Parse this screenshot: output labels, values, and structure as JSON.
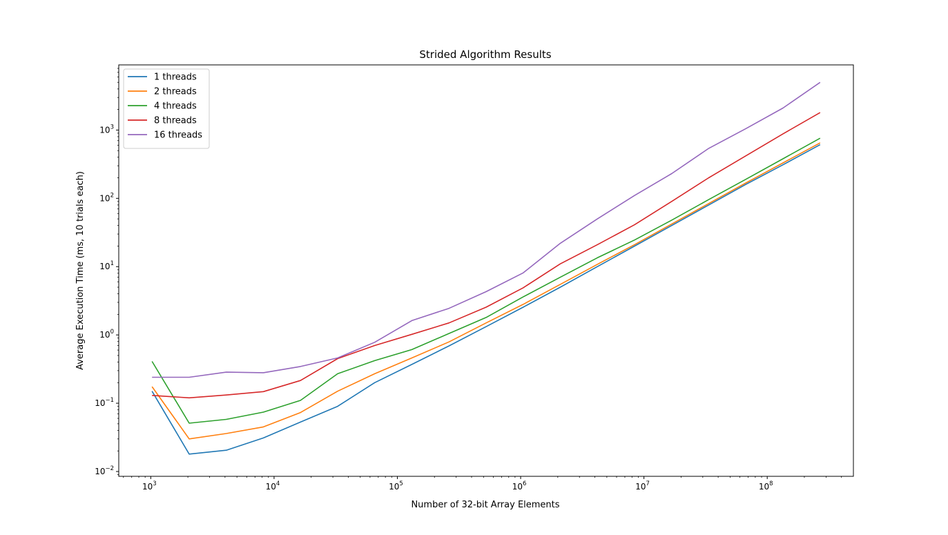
{
  "chart_data": {
    "type": "line",
    "title": "Strided Algorithm Results",
    "xlabel": "Number of 32-bit Array Elements",
    "ylabel": "Average Execution Time (ms, 10 trials each)",
    "xscale": "log",
    "yscale": "log",
    "xlim": [
      550,
      500000000
    ],
    "ylim": [
      0.0085,
      9000
    ],
    "x_ticks": [
      {
        "base": "10",
        "exp": "3",
        "value": 1000
      },
      {
        "base": "10",
        "exp": "4",
        "value": 10000
      },
      {
        "base": "10",
        "exp": "5",
        "value": 100000
      },
      {
        "base": "10",
        "exp": "6",
        "value": 1000000
      },
      {
        "base": "10",
        "exp": "7",
        "value": 10000000
      },
      {
        "base": "10",
        "exp": "8",
        "value": 100000000
      }
    ],
    "y_ticks": [
      {
        "base": "10",
        "exp": "−2",
        "value": 0.01
      },
      {
        "base": "10",
        "exp": "−1",
        "value": 0.1
      },
      {
        "base": "10",
        "exp": "0",
        "value": 1
      },
      {
        "base": "10",
        "exp": "1",
        "value": 10
      },
      {
        "base": "10",
        "exp": "2",
        "value": 100
      },
      {
        "base": "10",
        "exp": "3",
        "value": 1000
      }
    ],
    "grid": false,
    "legend_position": "top-left",
    "x": [
      1024,
      2048,
      4096,
      8192,
      16384,
      32768,
      65536,
      131072,
      262144,
      524288,
      1048576,
      2097152,
      4194304,
      8388608,
      16777216,
      33554432,
      67108864,
      134217728,
      268435456
    ],
    "series": [
      {
        "name": "1 threads",
        "color": "#1f77b4",
        "values": [
          0.15,
          0.018,
          0.0205,
          0.031,
          0.053,
          0.09,
          0.2,
          0.37,
          0.69,
          1.32,
          2.55,
          5.0,
          10.0,
          20.0,
          40.0,
          80.0,
          160.0,
          310.0,
          610.0
        ]
      },
      {
        "name": "2 threads",
        "color": "#ff7f0e",
        "values": [
          0.175,
          0.03,
          0.036,
          0.045,
          0.073,
          0.15,
          0.27,
          0.46,
          0.79,
          1.5,
          2.8,
          5.5,
          10.8,
          21.0,
          42.0,
          84.0,
          168.0,
          330.0,
          650.0
        ]
      },
      {
        "name": "4 threads",
        "color": "#2ca02c",
        "values": [
          0.41,
          0.051,
          0.058,
          0.074,
          0.11,
          0.27,
          0.42,
          0.61,
          1.05,
          1.8,
          3.6,
          7.0,
          13.5,
          24.5,
          48.0,
          96.0,
          190.0,
          380.0,
          760.0
        ]
      },
      {
        "name": "8 threads",
        "color": "#d62728",
        "values": [
          0.13,
          0.12,
          0.132,
          0.148,
          0.215,
          0.45,
          0.7,
          1.02,
          1.5,
          2.55,
          4.9,
          11.0,
          21.0,
          41.0,
          90.0,
          200.0,
          420.0,
          880.0,
          1800.0
        ]
      },
      {
        "name": "16 threads",
        "color": "#9467bd",
        "values": [
          0.24,
          0.24,
          0.285,
          0.28,
          0.345,
          0.46,
          0.78,
          1.62,
          2.45,
          4.3,
          8.1,
          22.0,
          50.0,
          110.0,
          230.0,
          540.0,
          1050.0,
          2100.0,
          5000.0
        ]
      }
    ]
  }
}
